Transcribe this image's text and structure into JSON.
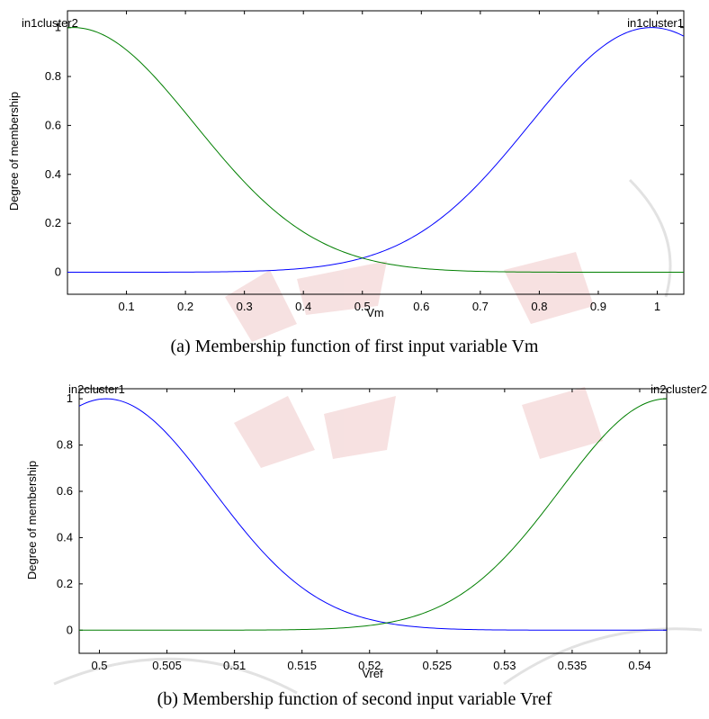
{
  "chart_data": [
    {
      "type": "line",
      "caption": "(a) Membership function of first input variable Vm",
      "xlabel": "Vm",
      "ylabel": "Degree of membership",
      "xlim": [
        0.0,
        1.045
      ],
      "ylim": [
        -0.09,
        1.0685
      ],
      "x_ticks": [
        0.1,
        0.2,
        0.3,
        0.4,
        0.5,
        0.6,
        0.7,
        0.8,
        0.9,
        1.0
      ],
      "x_tick_labels": [
        "0.1",
        "0.2",
        "0.3",
        "0.4",
        "0.5",
        "0.6",
        "0.7",
        "0.8",
        "0.9",
        "1"
      ],
      "y_ticks": [
        0,
        0.2,
        0.4,
        0.6,
        0.8,
        1.0
      ],
      "y_tick_labels": [
        "0",
        "0.2",
        "0.4",
        "0.6",
        "0.8",
        "1"
      ],
      "grid": false,
      "series": [
        {
          "name": "in1cluster1",
          "color": "#0000ff",
          "kind": "gaussian",
          "center": 0.99,
          "sigma": 0.2053
        },
        {
          "name": "in1cluster2",
          "color": "#007f00",
          "kind": "gaussian",
          "center": 0.01,
          "sigma": 0.2053
        }
      ],
      "mf_labels": [
        {
          "text": "in1cluster2",
          "anchor": "start",
          "x": 0.0
        },
        {
          "text": "in1cluster1",
          "anchor": "end",
          "x": 1.045
        }
      ]
    },
    {
      "type": "line",
      "caption": "(b) Membership function of second input variable Vref",
      "xlabel": "Vref",
      "ylabel": "Degree of membership",
      "xlim": [
        0.4985,
        0.542
      ],
      "ylim": [
        -0.1,
        1.0434
      ],
      "x_ticks": [
        0.5,
        0.505,
        0.51,
        0.515,
        0.52,
        0.525,
        0.53,
        0.535,
        0.54
      ],
      "x_tick_labels": [
        "0.5",
        "0.505",
        "0.51",
        "0.515",
        "0.52",
        "0.525",
        "0.53",
        "0.535",
        "0.54"
      ],
      "y_ticks": [
        0,
        0.2,
        0.4,
        0.6,
        0.8,
        1.0
      ],
      "y_tick_labels": [
        "0",
        "0.2",
        "0.4",
        "0.6",
        "0.8",
        "1"
      ],
      "grid": false,
      "series": [
        {
          "name": "in2cluster1",
          "color": "#0000ff",
          "kind": "gaussian",
          "center": 0.5005,
          "sigma": 0.00788
        },
        {
          "name": "in2cluster2",
          "color": "#007f00",
          "kind": "gaussian",
          "center": 0.542,
          "sigma": 0.00788
        }
      ],
      "mf_labels": [
        {
          "text": "in2cluster1",
          "anchor": "start",
          "x": 0.4985
        },
        {
          "text": "in2cluster2",
          "anchor": "end",
          "x": 0.542
        }
      ]
    }
  ]
}
